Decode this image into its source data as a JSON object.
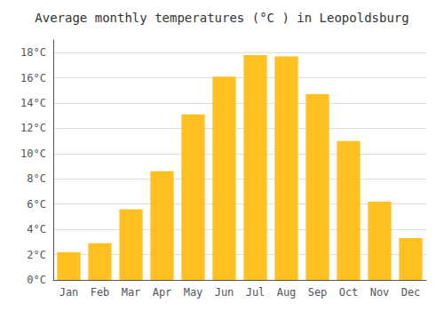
{
  "chart_data": {
    "type": "bar",
    "title": "Average monthly temperatures (°C ) in Leopoldsburg",
    "categories": [
      "Jan",
      "Feb",
      "Mar",
      "Apr",
      "May",
      "Jun",
      "Jul",
      "Aug",
      "Sep",
      "Oct",
      "Nov",
      "Dec"
    ],
    "values": [
      2.2,
      2.9,
      5.6,
      8.6,
      13.1,
      16.1,
      17.8,
      17.7,
      14.7,
      11.0,
      6.2,
      3.3
    ],
    "color": "#FFC020",
    "ylim": [
      0,
      19
    ],
    "yticks": [
      {
        "value": 0,
        "label": "0°C"
      },
      {
        "value": 2,
        "label": "2°C"
      },
      {
        "value": 4,
        "label": "4°C"
      },
      {
        "value": 6,
        "label": "6°C"
      },
      {
        "value": 8,
        "label": "8°C"
      },
      {
        "value": 10,
        "label": "10°C"
      },
      {
        "value": 12,
        "label": "12°C"
      },
      {
        "value": 14,
        "label": "14°C"
      },
      {
        "value": 16,
        "label": "16°C"
      },
      {
        "value": 18,
        "label": "18°C"
      }
    ],
    "grid": true
  }
}
